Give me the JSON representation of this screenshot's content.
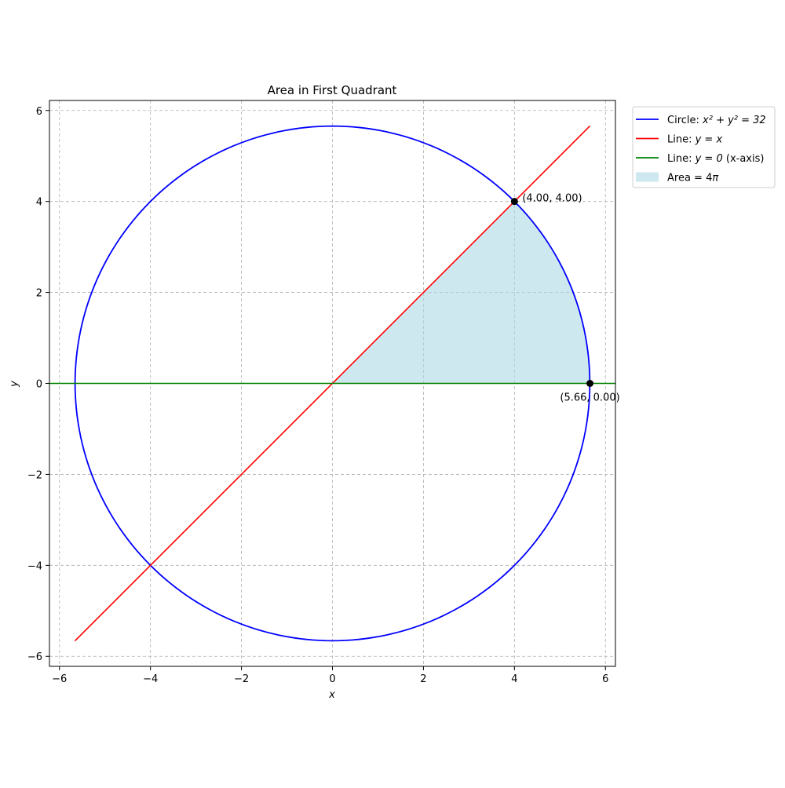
{
  "chart_data": {
    "type": "line",
    "title": "Area in First Quadrant",
    "xlabel": "x",
    "ylabel": "y",
    "xlim": [
      -6.22,
      6.22
    ],
    "ylim": [
      -6.22,
      6.22
    ],
    "xticks": [
      -6,
      -4,
      -2,
      0,
      2,
      4,
      6
    ],
    "yticks": [
      -6,
      -4,
      -2,
      0,
      2,
      4,
      6
    ],
    "xtick_labels": [
      "−6",
      "−4",
      "−2",
      "0",
      "2",
      "4",
      "6"
    ],
    "ytick_labels": [
      "−6",
      "−4",
      "−2",
      "0",
      "2",
      "4",
      "6"
    ],
    "grid": true,
    "legend_position": "outside-top-right",
    "circle_radius_squared": 32,
    "series": [
      {
        "kind": "circle",
        "name_prefix": "Circle: ",
        "name_math": "x² + y² = 32",
        "name_suffix": "",
        "color": "#0000ff"
      },
      {
        "kind": "line",
        "name_prefix": "Line: ",
        "name_math": "y = x",
        "name_suffix": "",
        "color": "#ff0000",
        "x": [
          -5.66,
          5.66
        ],
        "y": [
          -5.66,
          5.66
        ]
      },
      {
        "kind": "line",
        "name_prefix": "Line: ",
        "name_math": "y = 0",
        "name_suffix": " (x-axis)",
        "color": "#008000",
        "x": [
          -6.22,
          6.22
        ],
        "y": [
          0,
          0
        ]
      },
      {
        "kind": "area",
        "name_prefix": "Area = 4",
        "name_math": "π",
        "name_suffix": "",
        "color": "#add8e6"
      }
    ],
    "points": [
      {
        "x": 4.0,
        "y": 4.0,
        "label": "(4.00, 4.00)",
        "label_anchor": "right"
      },
      {
        "x": 5.66,
        "y": 0.0,
        "label": "(5.66, 0.00)",
        "label_anchor": "below"
      }
    ]
  }
}
